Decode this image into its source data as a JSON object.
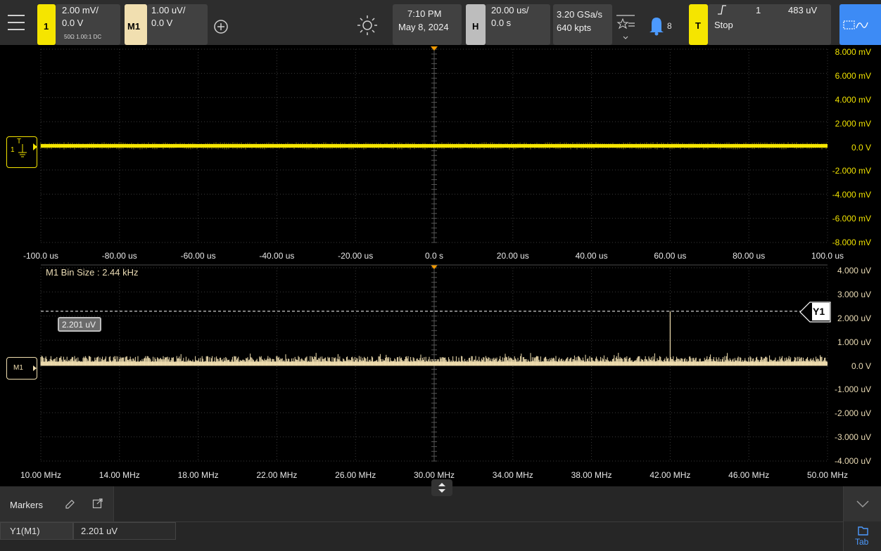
{
  "toolbar": {
    "ch1": {
      "number": "1",
      "scale": "2.00 mV/",
      "offset": "0.0 V",
      "details": "50Ω  1.00:1  DC"
    },
    "m1": {
      "label": "M1",
      "scale": "1.00 uV/",
      "offset": "0.0 V"
    },
    "datetime": {
      "time": "7:10 PM",
      "date": "May 8, 2024"
    },
    "horizontal": {
      "label": "H",
      "scale": "20.00 us/",
      "position": "0.0 s"
    },
    "acquisition": {
      "rate": "3.20 GSa/s",
      "points": "640 kpts"
    },
    "notifications": {
      "count": "8"
    },
    "trigger": {
      "label": "T",
      "source": "1",
      "level": "483 uV",
      "status": "Stop"
    }
  },
  "time_axis": {
    "y_labels": [
      "8.000 mV",
      "6.000 mV",
      "4.000 mV",
      "2.000 mV",
      "0.0 V",
      "-2.000 mV",
      "-4.000 mV",
      "-6.000 mV",
      "-8.000 mV"
    ],
    "x_labels": [
      "-100.0 us",
      "-80.00 us",
      "-60.00 us",
      "-40.00 us",
      "-20.00 us",
      "0.0 s",
      "20.00 us",
      "40.00 us",
      "60.00 us",
      "80.00 us",
      "100.0 us"
    ],
    "channel_marker": "1",
    "trigger_marker": "T"
  },
  "fft_axis": {
    "bin_size": "M1 Bin Size : 2.44 kHz",
    "y_labels": [
      "4.000 uV",
      "3.000 uV",
      "2.000 uV",
      "1.000 uV",
      "0.0 V",
      "-1.000 uV",
      "-2.000 uV",
      "-3.000 uV",
      "-4.000 uV"
    ],
    "x_labels": [
      "10.00 MHz",
      "14.00 MHz",
      "18.00 MHz",
      "22.00 MHz",
      "26.00 MHz",
      "30.00 MHz",
      "34.00 MHz",
      "38.00 MHz",
      "42.00 MHz",
      "46.00 MHz",
      "50.00 MHz"
    ],
    "marker_label": "Y1",
    "marker_readout": "2.201 uV",
    "channel_marker": "M1"
  },
  "markers_panel": {
    "title": "Markers",
    "rows": [
      {
        "name": "Y1(M1)",
        "value": "2.201 uV"
      }
    ],
    "tab_label": "Tab"
  },
  "colors": {
    "ch1": "#f5e500",
    "m1": "#f1dfb0",
    "accent_blue": "#3d8bf5"
  }
}
